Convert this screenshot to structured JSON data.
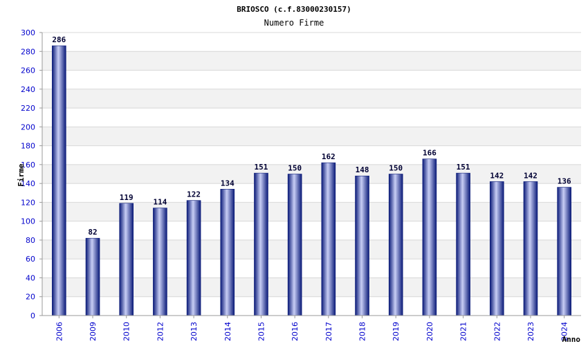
{
  "chart_data": {
    "type": "bar",
    "title": "BRIOSCO (c.f.83000230157)",
    "subtitle": "Numero Firme",
    "xlabel": "Anno",
    "ylabel": "Firme",
    "categories": [
      "2006",
      "2009",
      "2010",
      "2012",
      "2013",
      "2014",
      "2015",
      "2016",
      "2017",
      "2018",
      "2019",
      "2020",
      "2021",
      "2022",
      "2023",
      "2024"
    ],
    "values": [
      286,
      82,
      119,
      114,
      122,
      134,
      151,
      150,
      162,
      148,
      150,
      166,
      151,
      142,
      142,
      136
    ],
    "ylim": [
      0,
      300
    ],
    "yticks": [
      0,
      20,
      40,
      60,
      80,
      100,
      120,
      140,
      160,
      180,
      200,
      220,
      240,
      260,
      280,
      300
    ],
    "grid": true,
    "colors": {
      "bar_dark": "#0a1a78",
      "bar_light": "#c8cef5",
      "tick_text": "#0000cc",
      "band": "#f2f2f2",
      "gridline": "#d8d8d8"
    }
  }
}
